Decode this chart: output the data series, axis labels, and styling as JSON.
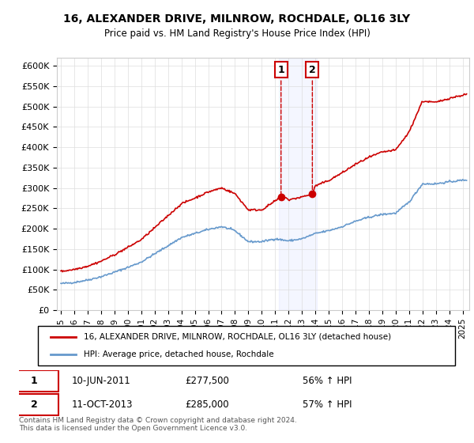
{
  "title": "16, ALEXANDER DRIVE, MILNROW, ROCHDALE, OL16 3LY",
  "subtitle": "Price paid vs. HM Land Registry's House Price Index (HPI)",
  "ylabel_ticks": [
    "£0",
    "£50K",
    "£100K",
    "£150K",
    "£200K",
    "£250K",
    "£300K",
    "£350K",
    "£400K",
    "£450K",
    "£500K",
    "£550K",
    "£600K"
  ],
  "ylim": [
    0,
    620000
  ],
  "xlim_start": 1995.0,
  "xlim_end": 2025.5,
  "legend_line1": "16, ALEXANDER DRIVE, MILNROW, ROCHDALE, OL16 3LY (detached house)",
  "legend_line2": "HPI: Average price, detached house, Rochdale",
  "annotation1_label": "1",
  "annotation1_date": "10-JUN-2011",
  "annotation1_price": "£277,500",
  "annotation1_hpi": "56% ↑ HPI",
  "annotation2_label": "2",
  "annotation2_date": "11-OCT-2013",
  "annotation2_price": "£285,000",
  "annotation2_hpi": "57% ↑ HPI",
  "footer": "Contains HM Land Registry data © Crown copyright and database right 2024.\nThis data is licensed under the Open Government Licence v3.0.",
  "line1_color": "#cc0000",
  "line2_color": "#6699cc",
  "annotation_box_color": "#cc0000",
  "point1_x": 2011.44,
  "point1_y": 277500,
  "point2_x": 2013.78,
  "point2_y": 285000,
  "hpi_ref_region": [
    2011.3,
    2014.1
  ]
}
